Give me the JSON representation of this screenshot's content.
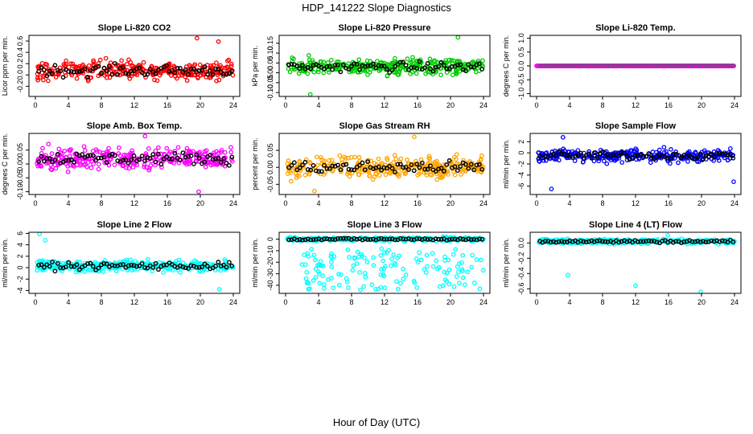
{
  "figure": {
    "title": "HDP_141222  Slope Diagnostics",
    "xlabel": "Hour of Day (UTC)"
  },
  "chart_data": [
    {
      "type": "scatter",
      "title": "Slope Li-820 CO2",
      "ylabel": "Licor ppm per min.",
      "xlim": [
        0,
        24
      ],
      "ylim": [
        -0.38,
        0.7
      ],
      "xticks": [
        0,
        4,
        8,
        12,
        16,
        20,
        24
      ],
      "yticks": [
        -0.2,
        0.0,
        0.2,
        0.4,
        0.6
      ],
      "ytick_labels": [
        "-0.2",
        "0.0",
        "0.2",
        "0.4",
        "0.6"
      ],
      "color": "#ff0000",
      "center": 0.08,
      "spread": 0.16,
      "outliers": [
        [
          19.6,
          0.65
        ],
        [
          22.2,
          0.59
        ]
      ]
    },
    {
      "type": "scatter",
      "title": "Slope Li-820 Pressure",
      "ylabel": "kPa per min.",
      "xlim": [
        0,
        24
      ],
      "ylim": [
        -0.12,
        0.19
      ],
      "xticks": [
        0,
        4,
        8,
        12,
        16,
        20,
        24
      ],
      "yticks": [
        -0.1,
        -0.05,
        0.0,
        0.05,
        0.1,
        0.15
      ],
      "ytick_labels": [
        "-0.10",
        "-0.05",
        "0.00",
        "0.05",
        "0.10",
        "0.15"
      ],
      "color": "#00cc00",
      "center": 0.03,
      "spread": 0.04,
      "outliers": [
        [
          20.9,
          0.18
        ],
        [
          3.0,
          -0.11
        ]
      ]
    },
    {
      "type": "scatter",
      "title": "Slope Li-820 Temp.",
      "ylabel": "degrees C per min.",
      "xlim": [
        0,
        24
      ],
      "ylim": [
        -1.1,
        1.1
      ],
      "xticks": [
        0,
        4,
        8,
        12,
        16,
        20,
        24
      ],
      "yticks": [
        -1.0,
        -0.5,
        0.0,
        0.5,
        1.0
      ],
      "ytick_labels": [
        "-1.0",
        "-0.5",
        "0.0",
        "0.5",
        "1.0"
      ],
      "color": "#ff00ff",
      "center": 0.0,
      "spread": 0.0,
      "outliers": []
    },
    {
      "type": "scatter",
      "title": "Slope Amb. Box Temp.",
      "ylabel": "degrees C per min.",
      "xlim": [
        0,
        24
      ],
      "ylim": [
        -0.11,
        0.11
      ],
      "xticks": [
        0,
        4,
        8,
        12,
        16,
        20,
        24
      ],
      "yticks": [
        -0.1,
        -0.05,
        0.0,
        0.05
      ],
      "ytick_labels": [
        "-0.10",
        "-0.05",
        "0.00",
        "0.05"
      ],
      "color": "#ff00ff",
      "center": 0.02,
      "spread": 0.035,
      "outliers": [
        [
          19.8,
          -0.1
        ],
        [
          13.3,
          0.1
        ]
      ]
    },
    {
      "type": "scatter",
      "title": "Slope Gas Stream RH",
      "ylabel": "percent per min.",
      "xlim": [
        0,
        24
      ],
      "ylim": [
        -0.08,
        0.1
      ],
      "xticks": [
        0,
        4,
        8,
        12,
        16,
        20,
        24
      ],
      "yticks": [
        -0.05,
        0.0,
        0.05
      ],
      "ytick_labels": [
        "-0.05",
        "0.00",
        "0.05"
      ],
      "color": "#ffa500",
      "center": 0.0,
      "spread": 0.03,
      "outliers": [
        [
          15.6,
          0.09
        ],
        [
          3.5,
          -0.07
        ]
      ]
    },
    {
      "type": "scatter",
      "title": "Slope Sample Flow",
      "ylabel": "ml/min per min.",
      "xlim": [
        0,
        24
      ],
      "ylim": [
        -7.5,
        3.5
      ],
      "xticks": [
        0,
        4,
        8,
        12,
        16,
        20,
        24
      ],
      "yticks": [
        -6,
        -4,
        -2,
        0,
        2
      ],
      "ytick_labels": [
        "-6",
        "-4",
        "-2",
        "0",
        "2"
      ],
      "color": "#0000ff",
      "center": -0.5,
      "spread": 1.1,
      "outliers": [
        [
          1.8,
          -6.5
        ],
        [
          3.2,
          2.8
        ],
        [
          23.9,
          -5.2
        ]
      ]
    },
    {
      "type": "scatter",
      "title": "Slope Line 2 Flow",
      "ylabel": "ml/min per min.",
      "xlim": [
        0,
        24
      ],
      "ylim": [
        -4.5,
        6.2
      ],
      "xticks": [
        0,
        4,
        8,
        12,
        16,
        20,
        24
      ],
      "yticks": [
        -4,
        -2,
        0,
        2,
        4,
        6
      ],
      "ytick_labels": [
        "-4",
        "-2",
        "0",
        "2",
        "4",
        "6"
      ],
      "color": "#00ffff",
      "center": 0.3,
      "spread": 1.0,
      "outliers": [
        [
          0.5,
          5.9
        ],
        [
          1.2,
          4.8
        ],
        [
          22.3,
          -3.8
        ]
      ]
    },
    {
      "type": "scatter",
      "title": "Slope Line 3 Flow",
      "ylabel": "ml/min per min.",
      "xlim": [
        0,
        24
      ],
      "ylim": [
        -47,
        6
      ],
      "xticks": [
        0,
        4,
        8,
        12,
        16,
        20,
        24
      ],
      "yticks": [
        -40,
        -30,
        -20,
        -10,
        0
      ],
      "ytick_labels": [
        "-40",
        "-30",
        "-20",
        "-10",
        "0"
      ],
      "color": "#00ffff",
      "center": 0.0,
      "spread": 1.5,
      "outliers": [
        [
          2.6,
          -38
        ],
        [
          2.0,
          -22
        ],
        [
          3.6,
          -18
        ],
        [
          7.6,
          -42
        ]
      ]
    },
    {
      "type": "scatter",
      "title": "Slope Line 4 (LT) Flow",
      "ylabel": "ml/min per min.",
      "xlim": [
        0,
        24
      ],
      "ylim": [
        -0.66,
        0.14
      ],
      "xticks": [
        0,
        4,
        8,
        12,
        16,
        20,
        24
      ],
      "yticks": [
        -0.6,
        -0.4,
        -0.2,
        0.0
      ],
      "ytick_labels": [
        "-0.6",
        "-0.4",
        "-0.2",
        "0.0"
      ],
      "color": "#00ffff",
      "center": 0.02,
      "spread": 0.03,
      "outliers": [
        [
          3.8,
          -0.42
        ],
        [
          12.0,
          -0.56
        ],
        [
          19.9,
          -0.64
        ],
        [
          15.9,
          0.1
        ]
      ]
    }
  ]
}
